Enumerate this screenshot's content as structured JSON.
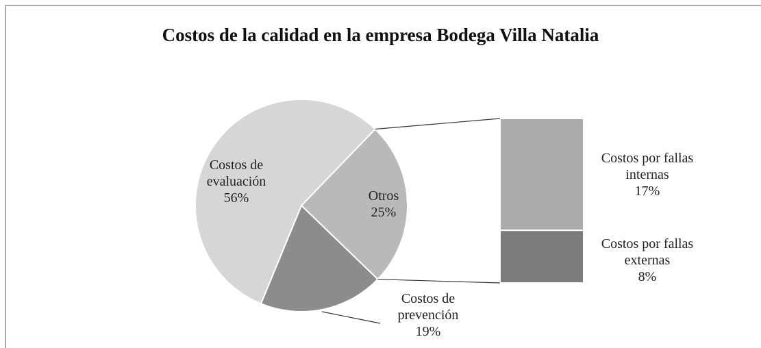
{
  "chart_data": {
    "type": "pie",
    "title": "Costos de la calidad en la empresa Bodega Villa Natalia",
    "categories": [
      "Costos de evaluación",
      "Otros",
      "Costos de prevención"
    ],
    "values": [
      56,
      25,
      19
    ],
    "value_labels": [
      "56%",
      "25%",
      "19%"
    ],
    "colors": [
      "#d6d6d6",
      "#b9b9b9",
      "#8c8c8c"
    ],
    "breakdown": {
      "categories": [
        "Costos por fallas internas",
        "Costos por fallas externas"
      ],
      "values": [
        17,
        8
      ],
      "value_labels": [
        "17%",
        "8%"
      ],
      "colors": [
        "#ababab",
        "#7c7c7c"
      ]
    }
  }
}
